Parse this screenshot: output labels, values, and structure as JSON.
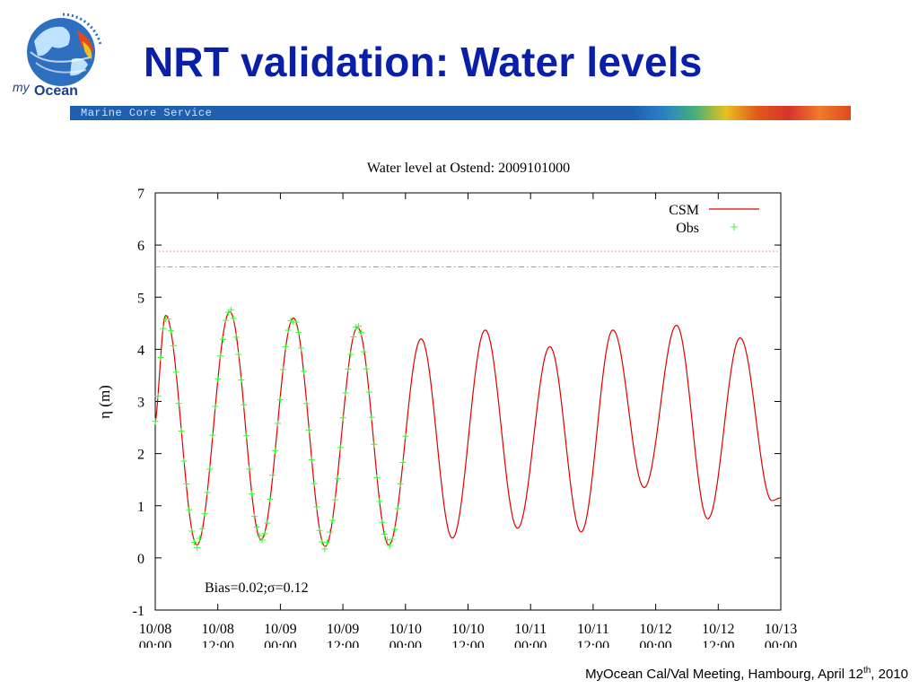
{
  "slide": {
    "title": "NRT validation: Water levels",
    "logo_text_my": "my",
    "logo_text_ocean": "Ocean",
    "banner_text": "Marine Core Service",
    "footer_pre": "MyOcean Cal/Val Meeting, Hambourg, April 12",
    "footer_sup": "th",
    "footer_post": ", 2010"
  },
  "colors": {
    "title": "#0a1fa8",
    "banner": "#1f5fb0",
    "csm": "#e00000",
    "obs": "#33ff33",
    "line_magenta": "#ff66cc",
    "line_cyan": "#33cccc"
  },
  "chart_data": {
    "type": "line",
    "title": "Water level at Ostend: 2009101000",
    "xlabel": "",
    "ylabel": "η (m)",
    "ylim": [
      -1,
      7
    ],
    "xlim_hours": [
      0,
      120
    ],
    "yticks": [
      "-1",
      "0",
      "1",
      "2",
      "3",
      "4",
      "5",
      "6",
      "7"
    ],
    "xticks": [
      {
        "date": "10/08",
        "time": "00:00"
      },
      {
        "date": "10/08",
        "time": "12:00"
      },
      {
        "date": "10/09",
        "time": "00:00"
      },
      {
        "date": "10/09",
        "time": "12:00"
      },
      {
        "date": "10/10",
        "time": "00:00"
      },
      {
        "date": "10/10",
        "time": "12:00"
      },
      {
        "date": "10/11",
        "time": "00:00"
      },
      {
        "date": "10/11",
        "time": "12:00"
      },
      {
        "date": "10/12",
        "time": "00:00"
      },
      {
        "date": "10/12",
        "time": "12:00"
      },
      {
        "date": "10/13",
        "time": "00:00"
      }
    ],
    "legend_position": "top-right",
    "annotation": "Bias=0.02;σ=0.12",
    "reference_lines": [
      {
        "y": 5.88,
        "color": "#ff66cc",
        "style": "dotted"
      },
      {
        "y": 5.58,
        "color": "#33cccc",
        "style": "dash-dot"
      }
    ],
    "csm_extrema": [
      [
        -0.3,
        2.5
      ],
      [
        2.0,
        4.65
      ],
      [
        8.0,
        0.25
      ],
      [
        14.3,
        4.72
      ],
      [
        20.3,
        0.35
      ],
      [
        26.5,
        4.6
      ],
      [
        32.6,
        0.22
      ],
      [
        38.8,
        4.42
      ],
      [
        44.8,
        0.25
      ],
      [
        51.0,
        4.2
      ],
      [
        57.0,
        0.38
      ],
      [
        63.3,
        4.37
      ],
      [
        69.5,
        0.57
      ],
      [
        75.7,
        4.05
      ],
      [
        81.7,
        0.5
      ],
      [
        87.8,
        4.37
      ],
      [
        93.8,
        1.35
      ],
      [
        100.0,
        4.46
      ],
      [
        106.0,
        0.75
      ],
      [
        112.2,
        4.22
      ],
      [
        118.3,
        1.1
      ],
      [
        120,
        1.15
      ]
    ],
    "series": [
      {
        "name": "CSM",
        "color": "#e00000",
        "style": "line",
        "hours_range": [
          0,
          120
        ]
      },
      {
        "name": "Obs",
        "color": "#33ff33",
        "style": "plus",
        "hours_range": [
          0,
          48
        ],
        "step_hours": 0.5
      }
    ]
  }
}
